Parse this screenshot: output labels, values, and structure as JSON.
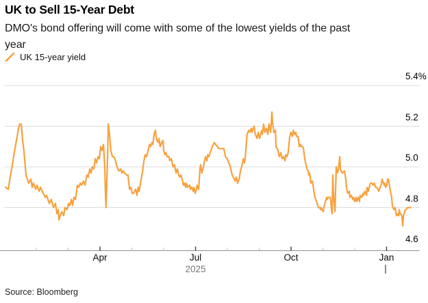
{
  "header": {
    "title": "UK to Sell 15-Year Debt",
    "subtitle": "DMO's bond offering will come with some of the lowest yields of the past year"
  },
  "legend": {
    "label": "UK 15-year yield"
  },
  "source": "Source: Bloomberg",
  "colors": {
    "line": "#F8A13D",
    "grid": "#DBDBDB",
    "axis": "#8F8F8F",
    "tick_major": "#3A3A3A",
    "tick_minor": "#C2C2C2",
    "year_text": "#767676",
    "year_tick": "#8A8A8A"
  },
  "chart_data": {
    "type": "line",
    "title": "UK to Sell 15-Year Debt",
    "subtitle": "DMO's bond offering will come with some of the lowest yields of the past year",
    "series_name": "UK 15-year yield",
    "y_unit": "%",
    "ylabel": "",
    "xlabel": "",
    "ylim": [
      4.6,
      5.45
    ],
    "grid": "horizontal",
    "legend_position": "top-left",
    "x_unit": "months since 2025-01-01 (0 = Jan 1 2025, 12 = Jan 1 2026)",
    "x_range": [
      0,
      12.8
    ],
    "x_tick_labels": [
      {
        "m": 3,
        "label": "Apr"
      },
      {
        "m": 6,
        "label": "Jul"
      },
      {
        "m": 9,
        "label": "Oct"
      },
      {
        "m": 12,
        "label": "Jan"
      }
    ],
    "x_minor_tick_months": [
      1,
      2,
      4,
      5,
      7,
      8,
      10,
      11
    ],
    "year_label": {
      "text": "2025",
      "m": 6
    },
    "year_boundary_tick_m": 12,
    "y_ticks": [
      {
        "v": 5.4,
        "label": "5.4%",
        "gridline": true
      },
      {
        "v": 5.2,
        "label": "5.2",
        "gridline": true
      },
      {
        "v": 5.0,
        "label": "5.0",
        "gridline": true
      },
      {
        "v": 4.8,
        "label": "4.8",
        "gridline": true
      },
      {
        "v": 4.6,
        "label": "4.6",
        "gridline": false
      }
    ],
    "points": [
      [
        0.03,
        4.9
      ],
      [
        0.12,
        4.89
      ],
      [
        0.18,
        4.95
      ],
      [
        0.25,
        5.01
      ],
      [
        0.33,
        5.09
      ],
      [
        0.4,
        5.15
      ],
      [
        0.44,
        5.19
      ],
      [
        0.48,
        5.21
      ],
      [
        0.53,
        5.21
      ],
      [
        0.57,
        5.13
      ],
      [
        0.61,
        5.08
      ],
      [
        0.66,
        4.99
      ],
      [
        0.68,
        4.96
      ],
      [
        0.76,
        4.92
      ],
      [
        0.83,
        4.94
      ],
      [
        0.87,
        4.9
      ],
      [
        0.91,
        4.92
      ],
      [
        0.98,
        4.89
      ],
      [
        1.02,
        4.91
      ],
      [
        1.09,
        4.88
      ],
      [
        1.13,
        4.9
      ],
      [
        1.22,
        4.87
      ],
      [
        1.28,
        4.85
      ],
      [
        1.32,
        4.86
      ],
      [
        1.41,
        4.82
      ],
      [
        1.47,
        4.84
      ],
      [
        1.54,
        4.8
      ],
      [
        1.6,
        4.82
      ],
      [
        1.65,
        4.77
      ],
      [
        1.69,
        4.79
      ],
      [
        1.71,
        4.74
      ],
      [
        1.75,
        4.76
      ],
      [
        1.8,
        4.78
      ],
      [
        1.86,
        4.76
      ],
      [
        1.9,
        4.8
      ],
      [
        1.97,
        4.79
      ],
      [
        2.01,
        4.82
      ],
      [
        2.05,
        4.81
      ],
      [
        2.1,
        4.84
      ],
      [
        2.14,
        4.81
      ],
      [
        2.18,
        4.85
      ],
      [
        2.23,
        4.84
      ],
      [
        2.29,
        4.91
      ],
      [
        2.33,
        4.9
      ],
      [
        2.38,
        4.92
      ],
      [
        2.42,
        4.91
      ],
      [
        2.48,
        4.93
      ],
      [
        2.53,
        4.91
      ],
      [
        2.59,
        4.96
      ],
      [
        2.63,
        4.95
      ],
      [
        2.68,
        4.99
      ],
      [
        2.72,
        4.97
      ],
      [
        2.76,
        5.0
      ],
      [
        2.81,
        4.99
      ],
      [
        2.85,
        5.04
      ],
      [
        2.89,
        5.02
      ],
      [
        2.94,
        5.05
      ],
      [
        2.98,
        5.04
      ],
      [
        3.02,
        5.1
      ],
      [
        3.06,
        5.08
      ],
      [
        3.11,
        5.11
      ],
      [
        3.15,
        5.0
      ],
      [
        3.17,
        4.88
      ],
      [
        3.19,
        4.8
      ],
      [
        3.24,
        5.06
      ],
      [
        3.26,
        5.21
      ],
      [
        3.3,
        5.16
      ],
      [
        3.34,
        5.08
      ],
      [
        3.39,
        5.05
      ],
      [
        3.43,
        5.05
      ],
      [
        3.47,
        5.04
      ],
      [
        3.52,
        5.01
      ],
      [
        3.56,
        4.99
      ],
      [
        3.6,
        4.98
      ],
      [
        3.65,
        4.99
      ],
      [
        3.69,
        4.97
      ],
      [
        3.73,
        4.98
      ],
      [
        3.77,
        4.97
      ],
      [
        3.84,
        4.96
      ],
      [
        3.88,
        4.96
      ],
      [
        3.93,
        4.89
      ],
      [
        3.97,
        4.9
      ],
      [
        4.01,
        4.87
      ],
      [
        4.05,
        4.87
      ],
      [
        4.12,
        4.89
      ],
      [
        4.16,
        4.86
      ],
      [
        4.2,
        4.9
      ],
      [
        4.23,
        4.88
      ],
      [
        4.27,
        4.92
      ],
      [
        4.33,
        4.97
      ],
      [
        4.38,
        5.03
      ],
      [
        4.42,
        5.06
      ],
      [
        4.46,
        5.05
      ],
      [
        4.53,
        5.09
      ],
      [
        4.55,
        5.11
      ],
      [
        4.59,
        5.1
      ],
      [
        4.63,
        5.12
      ],
      [
        4.66,
        5.11
      ],
      [
        4.7,
        5.16
      ],
      [
        4.74,
        5.18
      ],
      [
        4.76,
        5.15
      ],
      [
        4.79,
        5.13
      ],
      [
        4.83,
        5.12
      ],
      [
        4.85,
        5.14
      ],
      [
        4.89,
        5.1
      ],
      [
        4.94,
        5.12
      ],
      [
        4.98,
        5.13
      ],
      [
        5.0,
        5.08
      ],
      [
        5.04,
        5.06
      ],
      [
        5.07,
        5.07
      ],
      [
        5.11,
        5.05
      ],
      [
        5.17,
        5.05
      ],
      [
        5.19,
        5.03
      ],
      [
        5.24,
        5.04
      ],
      [
        5.28,
        5.01
      ],
      [
        5.3,
        5.0
      ],
      [
        5.34,
        5.01
      ],
      [
        5.39,
        4.97
      ],
      [
        5.43,
        4.99
      ],
      [
        5.47,
        4.96
      ],
      [
        5.5,
        4.95
      ],
      [
        5.54,
        4.96
      ],
      [
        5.58,
        4.94
      ],
      [
        5.62,
        4.91
      ],
      [
        5.65,
        4.92
      ],
      [
        5.69,
        4.9
      ],
      [
        5.71,
        4.92
      ],
      [
        5.75,
        4.9
      ],
      [
        5.82,
        4.91
      ],
      [
        5.84,
        4.89
      ],
      [
        5.88,
        4.9
      ],
      [
        5.93,
        4.88
      ],
      [
        5.95,
        4.9
      ],
      [
        5.99,
        4.87
      ],
      [
        6.03,
        4.89
      ],
      [
        6.05,
        4.91
      ],
      [
        6.1,
        4.89
      ],
      [
        6.14,
        4.99
      ],
      [
        6.16,
        5.01
      ],
      [
        6.2,
        4.97
      ],
      [
        6.25,
        5.0
      ],
      [
        6.27,
        5.02
      ],
      [
        6.31,
        5.05
      ],
      [
        6.36,
        5.03
      ],
      [
        6.38,
        5.06
      ],
      [
        6.42,
        5.05
      ],
      [
        6.46,
        5.07
      ],
      [
        6.53,
        5.1
      ],
      [
        6.59,
        5.12
      ],
      [
        6.63,
        5.11
      ],
      [
        6.68,
        5.1
      ],
      [
        6.74,
        5.09
      ],
      [
        6.81,
        5.09
      ],
      [
        6.85,
        5.09
      ],
      [
        6.89,
        5.09
      ],
      [
        6.94,
        5.05
      ],
      [
        7.0,
        5.04
      ],
      [
        7.02,
        5.03
      ],
      [
        7.07,
        5.01
      ],
      [
        7.11,
        4.99
      ],
      [
        7.15,
        4.96
      ],
      [
        7.22,
        4.94
      ],
      [
        7.24,
        4.93
      ],
      [
        7.28,
        4.95
      ],
      [
        7.32,
        4.92
      ],
      [
        7.37,
        4.94
      ],
      [
        7.41,
        4.98
      ],
      [
        7.45,
        5.0
      ],
      [
        7.5,
        5.04
      ],
      [
        7.54,
        5.02
      ],
      [
        7.56,
        5.04
      ],
      [
        7.62,
        5.16
      ],
      [
        7.67,
        5.18
      ],
      [
        7.71,
        5.17
      ],
      [
        7.75,
        5.19
      ],
      [
        7.77,
        5.17
      ],
      [
        7.84,
        5.2
      ],
      [
        7.88,
        5.16
      ],
      [
        7.93,
        5.14
      ],
      [
        7.97,
        5.17
      ],
      [
        8.01,
        5.14
      ],
      [
        8.08,
        5.18
      ],
      [
        8.1,
        5.16
      ],
      [
        8.14,
        5.21
      ],
      [
        8.18,
        5.17
      ],
      [
        8.23,
        5.19
      ],
      [
        8.27,
        5.16
      ],
      [
        8.31,
        5.21
      ],
      [
        8.36,
        5.17
      ],
      [
        8.4,
        5.27
      ],
      [
        8.42,
        5.22
      ],
      [
        8.46,
        5.17
      ],
      [
        8.51,
        5.18
      ],
      [
        8.53,
        5.1
      ],
      [
        8.59,
        5.08
      ],
      [
        8.63,
        5.05
      ],
      [
        8.68,
        5.07
      ],
      [
        8.72,
        5.04
      ],
      [
        8.76,
        5.05
      ],
      [
        8.81,
        5.03
      ],
      [
        8.83,
        5.06
      ],
      [
        8.87,
        5.05
      ],
      [
        8.91,
        5.07
      ],
      [
        8.96,
        5.15
      ],
      [
        9.0,
        5.17
      ],
      [
        9.04,
        5.15
      ],
      [
        9.07,
        5.18
      ],
      [
        9.11,
        5.16
      ],
      [
        9.15,
        5.17
      ],
      [
        9.17,
        5.15
      ],
      [
        9.22,
        5.15
      ],
      [
        9.26,
        5.1
      ],
      [
        9.3,
        5.11
      ],
      [
        9.32,
        5.1
      ],
      [
        9.37,
        5.1
      ],
      [
        9.39,
        5.09
      ],
      [
        9.43,
        5.04
      ],
      [
        9.47,
        5.01
      ],
      [
        9.5,
        4.99
      ],
      [
        9.54,
        4.98
      ],
      [
        9.56,
        4.96
      ],
      [
        9.58,
        4.97
      ],
      [
        9.6,
        4.95
      ],
      [
        9.62,
        4.92
      ],
      [
        9.67,
        4.93
      ],
      [
        9.69,
        4.91
      ],
      [
        9.71,
        4.89
      ],
      [
        9.73,
        4.87
      ],
      [
        9.75,
        4.85
      ],
      [
        9.8,
        4.83
      ],
      [
        9.82,
        4.82
      ],
      [
        9.86,
        4.8
      ],
      [
        9.9,
        4.8
      ],
      [
        9.93,
        4.79
      ],
      [
        9.95,
        4.8
      ],
      [
        9.97,
        4.79
      ],
      [
        10.01,
        4.78
      ],
      [
        10.03,
        4.8
      ],
      [
        10.08,
        4.83
      ],
      [
        10.12,
        4.85
      ],
      [
        10.14,
        4.84
      ],
      [
        10.16,
        4.85
      ],
      [
        10.18,
        4.85
      ],
      [
        10.23,
        4.85
      ],
      [
        10.25,
        4.83
      ],
      [
        10.27,
        4.79
      ],
      [
        10.29,
        4.77
      ],
      [
        10.31,
        4.96
      ],
      [
        10.34,
        4.85
      ],
      [
        10.38,
        4.78
      ],
      [
        10.42,
        5.0
      ],
      [
        10.46,
        4.97
      ],
      [
        10.49,
        4.99
      ],
      [
        10.53,
        5.05
      ],
      [
        10.55,
        4.99
      ],
      [
        10.57,
        4.98
      ],
      [
        10.61,
        4.97
      ],
      [
        10.68,
        4.98
      ],
      [
        10.72,
        4.94
      ],
      [
        10.74,
        4.9
      ],
      [
        10.78,
        4.87
      ],
      [
        10.83,
        4.88
      ],
      [
        10.85,
        4.85
      ],
      [
        10.89,
        4.86
      ],
      [
        10.94,
        4.84
      ],
      [
        10.96,
        4.85
      ],
      [
        11.0,
        4.83
      ],
      [
        11.04,
        4.85
      ],
      [
        11.06,
        4.83
      ],
      [
        11.11,
        4.85
      ],
      [
        11.15,
        4.83
      ],
      [
        11.17,
        4.86
      ],
      [
        11.22,
        4.85
      ],
      [
        11.26,
        4.87
      ],
      [
        11.28,
        4.86
      ],
      [
        11.32,
        4.88
      ],
      [
        11.37,
        4.86
      ],
      [
        11.39,
        4.9
      ],
      [
        11.43,
        4.88
      ],
      [
        11.47,
        4.91
      ],
      [
        11.49,
        4.92
      ],
      [
        11.52,
        4.92
      ],
      [
        11.54,
        4.92
      ],
      [
        11.58,
        4.91
      ],
      [
        11.62,
        4.92
      ],
      [
        11.65,
        4.9
      ],
      [
        11.69,
        4.9
      ],
      [
        11.73,
        4.89
      ],
      [
        11.75,
        4.88
      ],
      [
        11.8,
        4.9
      ],
      [
        11.84,
        4.92
      ],
      [
        11.86,
        4.94
      ],
      [
        11.88,
        4.93
      ],
      [
        11.93,
        4.91
      ],
      [
        11.95,
        4.92
      ],
      [
        11.97,
        4.9
      ],
      [
        12.01,
        4.91
      ],
      [
        12.03,
        4.94
      ],
      [
        12.05,
        4.94
      ],
      [
        12.08,
        4.92
      ],
      [
        12.12,
        4.88
      ],
      [
        12.16,
        4.85
      ],
      [
        12.18,
        4.81
      ],
      [
        12.23,
        4.79
      ],
      [
        12.27,
        4.8
      ],
      [
        12.29,
        4.78
      ],
      [
        12.31,
        4.76
      ],
      [
        12.36,
        4.77
      ],
      [
        12.38,
        4.76
      ],
      [
        12.4,
        4.79
      ],
      [
        12.42,
        4.77
      ],
      [
        12.44,
        4.77
      ],
      [
        12.48,
        4.76
      ],
      [
        12.51,
        4.71
      ],
      [
        12.53,
        4.76
      ],
      [
        12.57,
        4.78
      ],
      [
        12.59,
        4.79
      ],
      [
        12.61,
        4.79
      ],
      [
        12.66,
        4.8
      ],
      [
        12.7,
        4.8
      ],
      [
        12.72,
        4.8
      ],
      [
        12.76,
        4.8
      ]
    ]
  }
}
